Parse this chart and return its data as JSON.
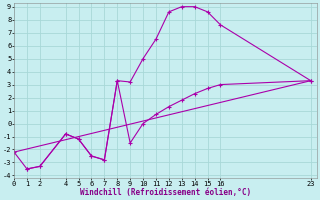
{
  "xlabel": "Windchill (Refroidissement éolien,°C)",
  "bg_color": "#c8eef0",
  "grid_color": "#a8d8d8",
  "line_color": "#aa00aa",
  "line1_x": [
    1,
    2,
    4,
    5,
    6,
    7,
    8,
    9,
    10,
    11,
    12,
    13,
    14,
    15,
    16,
    23
  ],
  "line1_y": [
    -3.5,
    -3.3,
    -0.8,
    -1.2,
    -2.5,
    -2.8,
    3.3,
    3.2,
    5.0,
    6.5,
    8.6,
    9.0,
    9.0,
    8.6,
    7.6,
    3.3
  ],
  "line2_x": [
    0,
    1,
    2,
    4,
    5,
    6,
    7,
    8,
    9,
    10,
    11,
    12,
    13,
    14,
    15,
    16,
    23
  ],
  "line2_y": [
    -2.2,
    -3.5,
    -3.3,
    -0.8,
    -1.2,
    -2.5,
    -2.8,
    3.3,
    -1.5,
    0.0,
    0.7,
    1.3,
    1.8,
    2.3,
    2.7,
    3.0,
    3.3
  ],
  "line3_x": [
    0,
    23
  ],
  "line3_y": [
    -2.2,
    3.3
  ],
  "xlim": [
    0,
    23.5
  ],
  "ylim": [
    -4.2,
    9.3
  ],
  "xticks": [
    0,
    1,
    2,
    4,
    5,
    6,
    7,
    8,
    9,
    10,
    11,
    12,
    13,
    14,
    15,
    16,
    23
  ],
  "yticks": [
    -4,
    -3,
    -2,
    -1,
    0,
    1,
    2,
    3,
    4,
    5,
    6,
    7,
    8,
    9
  ]
}
